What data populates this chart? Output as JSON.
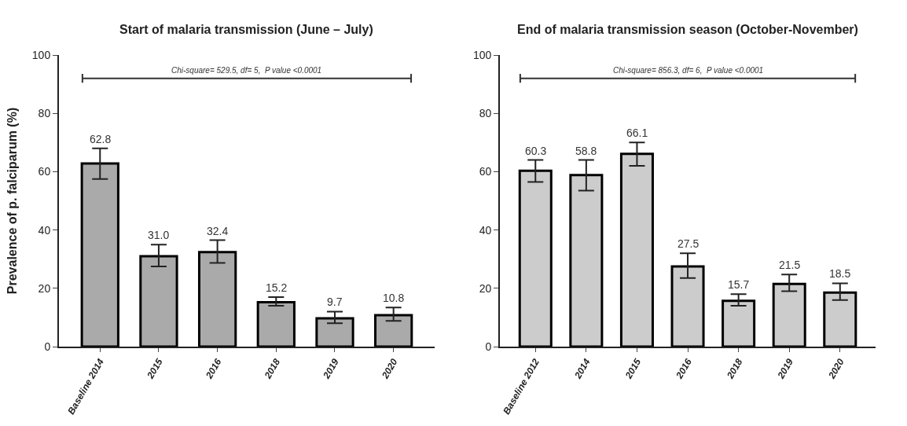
{
  "chart_data": [
    {
      "type": "bar",
      "title": "Start of malaria transmission (June – July)",
      "ylabel": "Prevalence of p. falciparum (%)",
      "categories": [
        "Baseline 2014",
        "2015",
        "2016",
        "2018",
        "2019",
        "2020"
      ],
      "values": [
        62.8,
        31.0,
        32.4,
        15.2,
        9.7,
        10.8
      ],
      "errors": [
        [
          57.5,
          68
        ],
        [
          27.5,
          35
        ],
        [
          28.7,
          36.5
        ],
        [
          14,
          17
        ],
        [
          8,
          12
        ],
        [
          8.8,
          13.4
        ]
      ],
      "value_labels": [
        "62.8",
        "31.0",
        "32.4",
        "15.2",
        "9.7",
        "10.8"
      ],
      "color": "#aaaaaa",
      "ylim": [
        0,
        100
      ],
      "yticks": [
        0,
        20,
        40,
        60,
        80,
        100
      ],
      "annotations": [
        "Chi-square= 529.5, df= 5,  P value <0.0001"
      ]
    },
    {
      "type": "bar",
      "title": "End of malaria transmission season (October-November)",
      "categories": [
        "Baseline 2012",
        "2014",
        "2015",
        "2016",
        "2018",
        "2019",
        "2020"
      ],
      "values": [
        60.3,
        58.8,
        66.1,
        27.5,
        15.7,
        21.5,
        18.5
      ],
      "errors": [
        [
          56.5,
          64
        ],
        [
          53.5,
          64
        ],
        [
          62,
          70
        ],
        [
          23.5,
          32
        ],
        [
          14,
          18
        ],
        [
          19,
          24.7
        ],
        [
          16,
          21.7
        ]
      ],
      "value_labels": [
        "60.3",
        "58.8",
        "66.1",
        "27.5",
        "15.7",
        "21.5",
        "18.5"
      ],
      "color": "#cccccc",
      "ylim": [
        0,
        100
      ],
      "yticks": [
        0,
        20,
        40,
        60,
        80,
        100
      ],
      "annotations": [
        "Chi-square= 856.3, df= 6,  P value <0.0001"
      ]
    }
  ]
}
